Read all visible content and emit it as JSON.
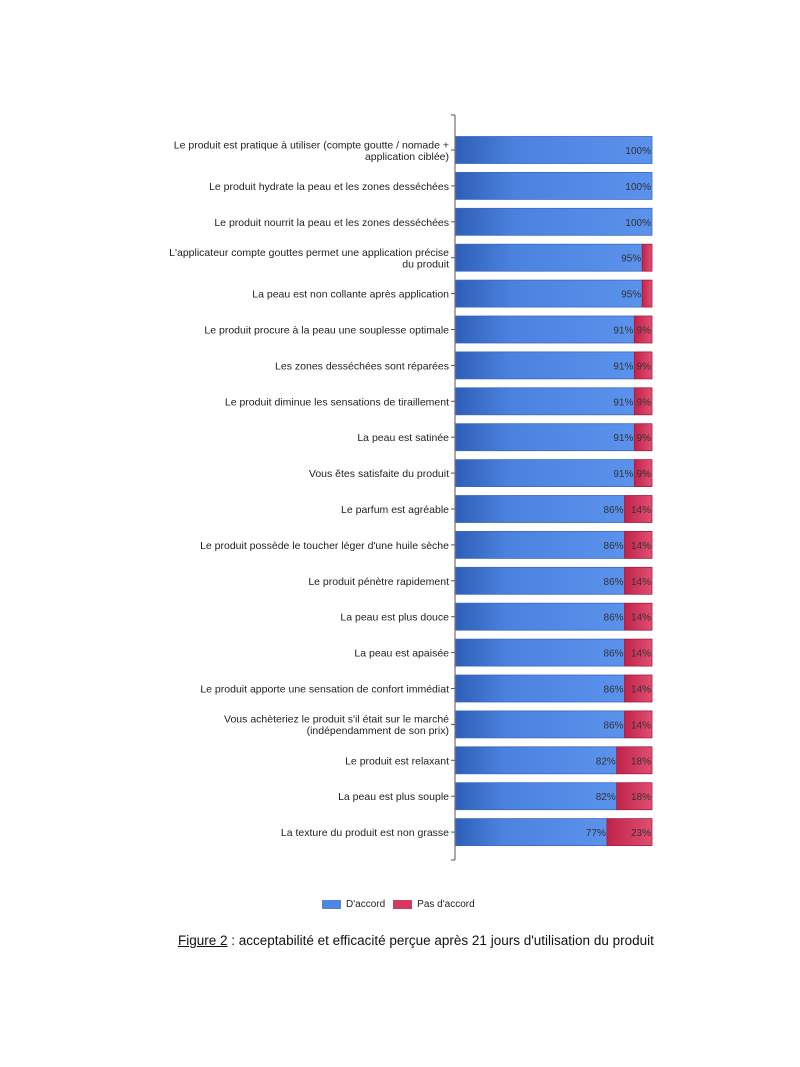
{
  "chart_data": {
    "type": "bar",
    "orientation": "horizontal",
    "stacked": true,
    "categories": [
      "Le produit est pratique à utiliser (compte goutte / nomade + application ciblée)",
      "Le produit hydrate la peau et les zones desséchées",
      "Le produit nourrit la peau et les zones desséchées",
      "L'applicateur compte gouttes permet une application précise du produit",
      "La peau est non collante après application",
      "Le produit procure à la peau une souplesse optimale",
      "Les zones desséchées sont réparées",
      "Le produit diminue les sensations de tiraillement",
      "La peau est satinée",
      "Vous êtes satisfaite du produit",
      "Le parfum est agréable",
      "Le produit possède le toucher léger d'une huile sèche",
      "Le produit pénètre rapidement",
      "La peau est plus douce",
      "La peau est apaisée",
      "Le produit apporte une sensation de confort immédiat",
      "Vous achèteriez le produit s'il était sur le marché (indépendamment de son prix)",
      "Le produit est relaxant",
      "La peau est plus souple",
      "La texture du produit est non grasse"
    ],
    "category_lines": [
      [
        "Le produit est pratique à utiliser (compte goutte / nomade +",
        "application ciblée)"
      ],
      [
        "Le produit hydrate la peau et les zones desséchées"
      ],
      [
        "Le produit nourrit la peau et les zones desséchées"
      ],
      [
        "L'applicateur compte gouttes permet une application précise",
        "du produit"
      ],
      [
        "La peau est non collante après application"
      ],
      [
        "Le produit procure à la peau une souplesse optimale"
      ],
      [
        "Les zones desséchées sont réparées"
      ],
      [
        "Le produit diminue les sensations de tiraillement"
      ],
      [
        "La peau est satinée"
      ],
      [
        "Vous êtes satisfaite du produit"
      ],
      [
        "Le parfum est agréable"
      ],
      [
        "Le produit possède le toucher léger d'une huile sèche"
      ],
      [
        "Le produit pénètre rapidement"
      ],
      [
        "La peau est plus douce"
      ],
      [
        "La peau est apaisée"
      ],
      [
        "Le produit apporte une sensation de confort immédiat"
      ],
      [
        "Vous achèteriez le produit s'il était sur le marché",
        "(indépendamment de son prix)"
      ],
      [
        "Le produit est relaxant"
      ],
      [
        "La peau est plus souple"
      ],
      [
        "La texture du produit est non grasse"
      ]
    ],
    "series": [
      {
        "name": "D'accord",
        "color": "#4f86e0",
        "values": [
          100,
          100,
          100,
          95,
          95,
          91,
          91,
          91,
          91,
          91,
          86,
          86,
          86,
          86,
          86,
          86,
          86,
          82,
          82,
          77
        ]
      },
      {
        "name": "Pas d'accord",
        "color": "#d43a5e",
        "values": [
          0,
          0,
          0,
          5,
          5,
          9,
          9,
          9,
          9,
          9,
          14,
          14,
          14,
          14,
          14,
          14,
          14,
          18,
          18,
          23
        ]
      }
    ],
    "value_labels": [
      [
        "100%",
        ""
      ],
      [
        "100%",
        ""
      ],
      [
        "100%",
        ""
      ],
      [
        "95%",
        ""
      ],
      [
        "95%",
        ""
      ],
      [
        "91%",
        "9%"
      ],
      [
        "91%",
        "9%"
      ],
      [
        "91%",
        "9%"
      ],
      [
        "91%",
        "9%"
      ],
      [
        "91%",
        "9%"
      ],
      [
        "86%",
        "14%"
      ],
      [
        "86%",
        "14%"
      ],
      [
        "86%",
        "14%"
      ],
      [
        "86%",
        "14%"
      ],
      [
        "86%",
        "14%"
      ],
      [
        "86%",
        "14%"
      ],
      [
        "86%",
        "14%"
      ],
      [
        "82%",
        "18%"
      ],
      [
        "82%",
        "18%"
      ],
      [
        "77%",
        "23%"
      ]
    ],
    "xlim": [
      0,
      100
    ],
    "legend": "bottom"
  },
  "legend_items": [
    {
      "label": "D'accord",
      "color": "#4f86e0"
    },
    {
      "label": "Pas d'accord",
      "color": "#d43a5e"
    }
  ],
  "caption": {
    "figure_ref": "Figure 2",
    "text": " : acceptabilité et efficacité perçue après 21 jours d'utilisation du produit"
  }
}
